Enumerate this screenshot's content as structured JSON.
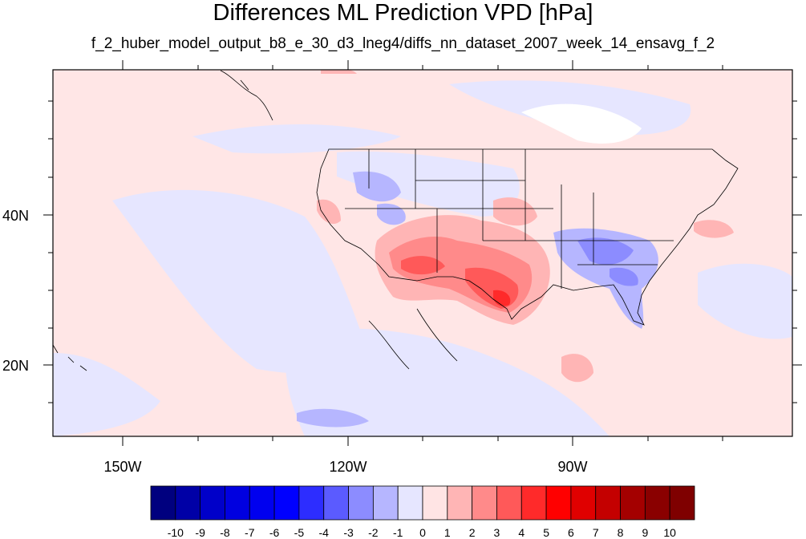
{
  "title": "Differences ML Prediction VPD [hPa]",
  "subtitle": "f_2_huber_model_output_b8_e_30_d3_lneg4/diffs_nn_dataset_2007_week_14_ensavg_f_2",
  "latitude_labels": [
    "40N",
    "20N"
  ],
  "longitude_labels": [
    "150W",
    "120W",
    "90W"
  ],
  "colorbar": {
    "labels": [
      "-10",
      "-9",
      "-8",
      "-7",
      "-6",
      "-5",
      "-4",
      "-3",
      "-2",
      "-1",
      "0",
      "1",
      "2",
      "3",
      "4",
      "5",
      "6",
      "7",
      "8",
      "9",
      "10"
    ],
    "colors": [
      "#00007f",
      "#0000a6",
      "#0000c9",
      "#0000e0",
      "#0000ef",
      "#0000ff",
      "#2d2dff",
      "#5b5bff",
      "#8c8cff",
      "#b6b6ff",
      "#e6e6ff",
      "#ffe4e4",
      "#ffb5b5",
      "#ff8a8a",
      "#ff5959",
      "#ff2a2a",
      "#ff0000",
      "#e00000",
      "#c40000",
      "#a40000",
      "#8a0000",
      "#7f0000"
    ]
  }
}
